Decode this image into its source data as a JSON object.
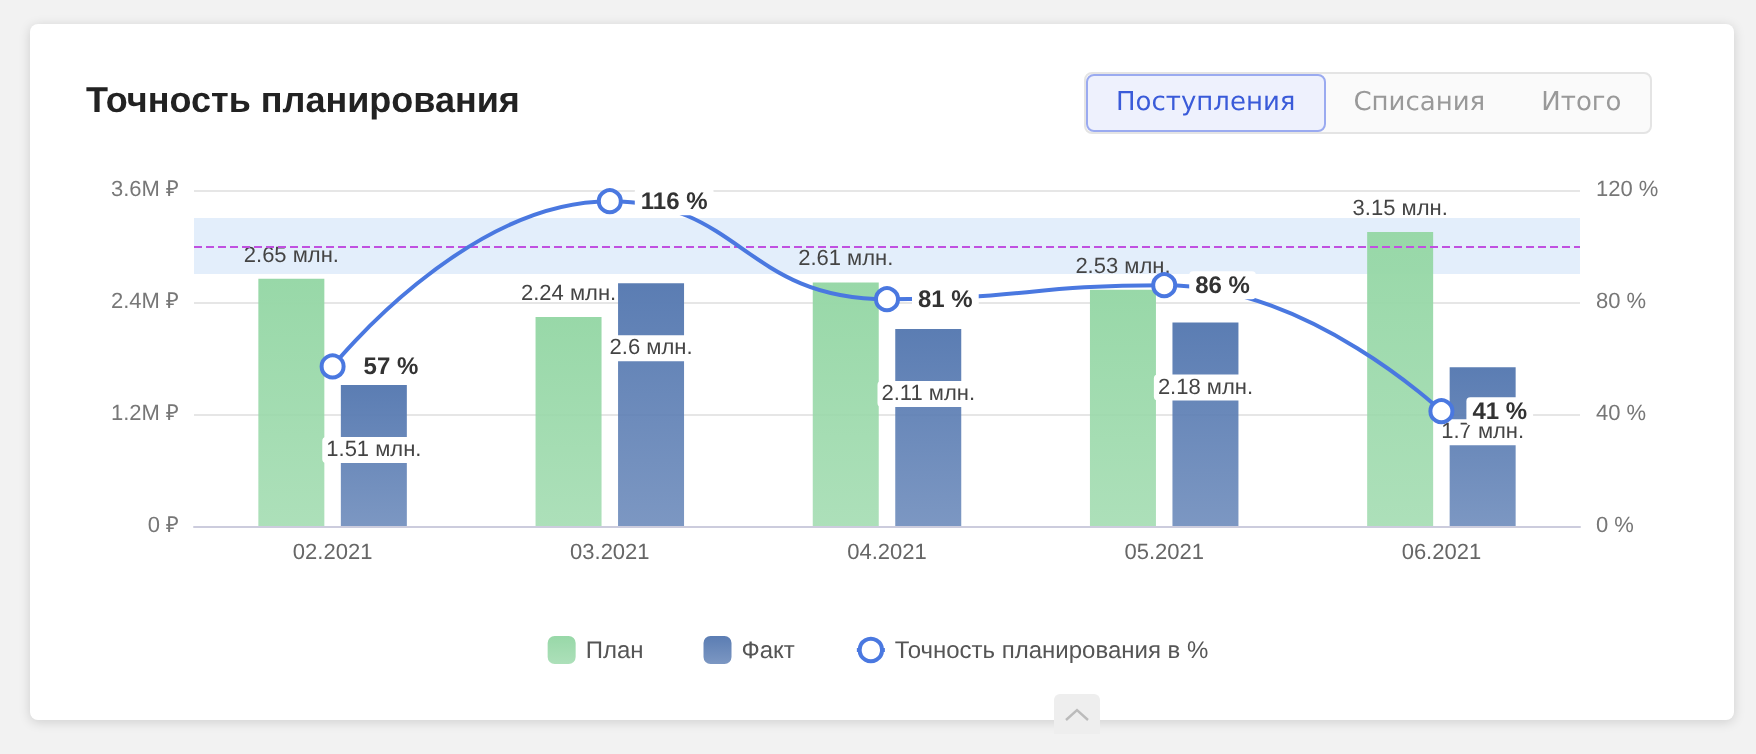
{
  "chart_data": {
    "type": "bar",
    "title": "Точность планирования",
    "annotations": [
      "Поступления",
      "Списания",
      "Итого"
    ],
    "categories": [
      "02.2021",
      "03.2021",
      "04.2021",
      "05.2021",
      "06.2021"
    ],
    "series": [
      {
        "name": "План",
        "color": "#98d8a8",
        "values": [
          2.65,
          2.24,
          2.61,
          2.53,
          3.15
        ],
        "value_labels": [
          "2.65 млн.",
          "2.24 млн.",
          "2.61 млн.",
          "2.53 млн.",
          "3.15 млн."
        ]
      },
      {
        "name": "Факт",
        "color": "#5b7db3",
        "values": [
          1.51,
          2.6,
          2.11,
          2.18,
          1.7
        ],
        "value_labels": [
          "1.51 млн.",
          "2.6 млн.",
          "2.11 млн.",
          "2.18 млн.",
          "1.7 млн."
        ]
      },
      {
        "name": "Точность планирования в %",
        "type": "line",
        "axis": "y2",
        "color": "#4a78e0",
        "marker": "circle",
        "line_style": "solid",
        "values": [
          57,
          116,
          81,
          86,
          41
        ],
        "value_labels": [
          "57 %",
          "116 %",
          "81 %",
          "86 %",
          "41 %"
        ]
      }
    ],
    "ylim": [
      0,
      3.6
    ],
    "yticks": [
      {
        "value": 0,
        "label": "0 ₽"
      },
      {
        "value": 1.2,
        "label": "1.2M ₽"
      },
      {
        "value": 2.4,
        "label": "2.4M ₽"
      },
      {
        "value": 3.6,
        "label": "3.6M ₽"
      }
    ],
    "y2lim": [
      0,
      120
    ],
    "y2ticks": [
      {
        "value": 0,
        "label": "0 %"
      },
      {
        "value": 40,
        "label": "40 %"
      },
      {
        "value": 80,
        "label": "80 %"
      },
      {
        "value": 120,
        "label": "120 %"
      }
    ],
    "ref_lines": [
      {
        "axis": "y2",
        "value": 100,
        "color": "#c050e0",
        "line_style": "dashed"
      }
    ],
    "bands": [
      {
        "axis": "y2",
        "from": 90,
        "to": 110,
        "color": "#e3eefb"
      }
    ],
    "grid": "y",
    "legend": "bottom"
  }
}
